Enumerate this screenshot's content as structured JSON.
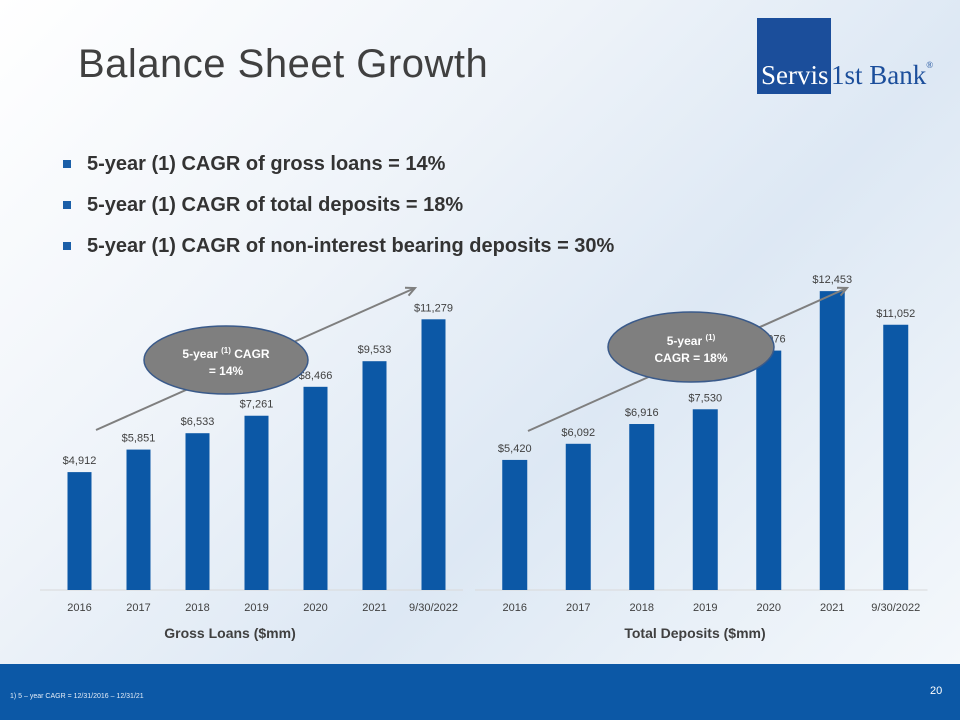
{
  "title": "Balance Sheet Growth",
  "logo": {
    "part1": "Servis",
    "part2": "1st Bank",
    "reg": "®"
  },
  "bullets": [
    "5-year (1) CAGR of gross loans = 14%",
    "5-year (1) CAGR of total deposits = 18%",
    "5-year (1) CAGR of non-interest bearing deposits = 30%"
  ],
  "colors": {
    "bar": "#0c58a6",
    "footer": "#0c58a6",
    "bubble": "#7f7f7f",
    "arrow": "#7f7f7f"
  },
  "chart_data": [
    {
      "type": "bar",
      "categories": [
        "2016",
        "2017",
        "2018",
        "2019",
        "2020",
        "2021",
        "9/30/2022"
      ],
      "values": [
        4912,
        5851,
        6533,
        7261,
        8466,
        9533,
        11279
      ],
      "data_labels": [
        "$4,912",
        "$5,851",
        "$6,533",
        "$7,261",
        "$8,466",
        "$9,533",
        "$11,279"
      ],
      "xlabel": "Gross Loans ($mm)",
      "ylabel": "",
      "ylim": [
        0,
        12500
      ],
      "annotation": {
        "line1": "5-year",
        "sup": "(1)",
        "line1b": "CAGR",
        "line2": "= 14%"
      }
    },
    {
      "type": "bar",
      "categories": [
        "2016",
        "2017",
        "2018",
        "2019",
        "2020",
        "2021",
        "9/30/2022"
      ],
      "values": [
        5420,
        6092,
        6916,
        7530,
        9976,
        12453,
        11052
      ],
      "data_labels": [
        "$5,420",
        "$6,092",
        "$6,916",
        "$7,530",
        "$9,976",
        "$12,453",
        "$11,052"
      ],
      "xlabel": "Total Deposits ($mm)",
      "ylabel": "",
      "ylim": [
        0,
        12500
      ],
      "annotation": {
        "line1": "5-year",
        "sup": "(1)",
        "line1b": "",
        "line2": "CAGR = 18%"
      }
    }
  ],
  "footnote": "1)      5 – year CAGR = 12/31/2016 – 12/31/21",
  "page_number": "20"
}
